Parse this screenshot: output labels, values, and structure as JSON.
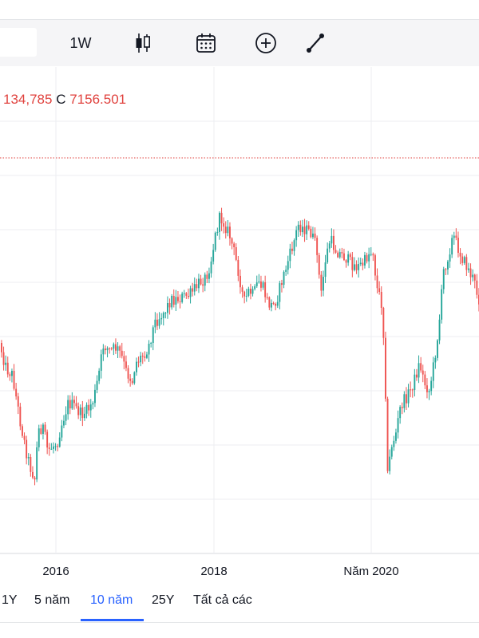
{
  "toolbar": {
    "interval_label": "1W",
    "icons": [
      "candlestick-icon",
      "calendar-icon",
      "plus-circle-icon",
      "line-tool-icon"
    ]
  },
  "ohlc": {
    "prev_value": "134,785",
    "close_key": "C",
    "close_value": "7156.501"
  },
  "colors": {
    "up": "#26a69a",
    "down": "#ef5350",
    "accent": "#2962ff",
    "grid": "#eceef2"
  },
  "chart_data": {
    "type": "candlestick",
    "x_ticks": [
      "2016",
      "2018",
      "Năm 2020"
    ],
    "price_line_style": "dotted-red",
    "grid": true
  },
  "periods": {
    "items": [
      "1Y",
      "5 năm",
      "10 năm",
      "25Y",
      "Tất cả các"
    ],
    "active": "10 năm"
  }
}
